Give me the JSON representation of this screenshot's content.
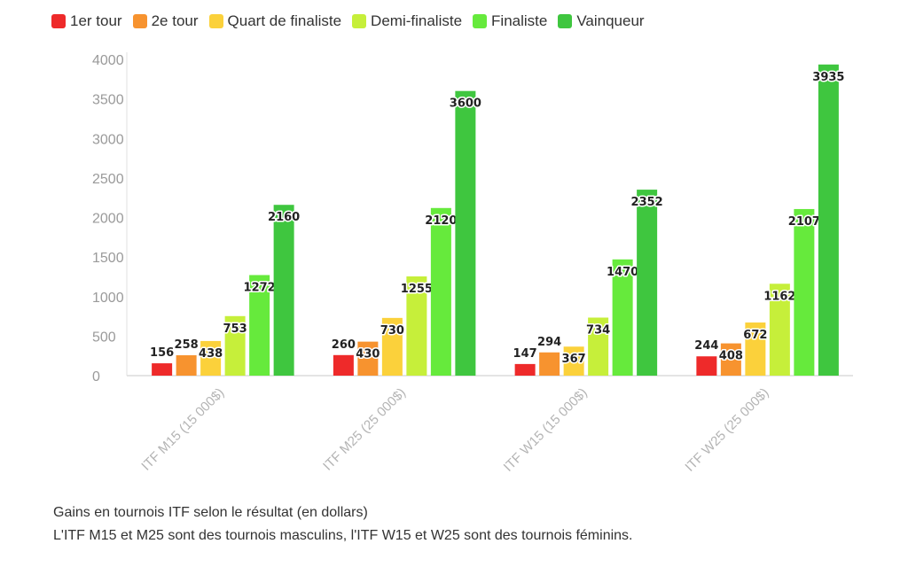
{
  "chart_data": {
    "type": "bar",
    "categories": [
      "ITF M15 (15 000$)",
      "ITF M25 (25 000$)",
      "ITF W15 (15 000$)",
      "ITF W25 (25 000$)"
    ],
    "series": [
      {
        "name": "1er tour",
        "color": "#ee2a2a",
        "values": [
          156,
          260,
          147,
          244
        ]
      },
      {
        "name": "2e tour",
        "color": "#f7932f",
        "values": [
          258,
          430,
          294,
          408
        ]
      },
      {
        "name": "Quart de finaliste",
        "color": "#fbd13b",
        "values": [
          438,
          730,
          367,
          672
        ]
      },
      {
        "name": "Demi-finaliste",
        "color": "#c6ef3a",
        "values": [
          753,
          1255,
          734,
          1162
        ]
      },
      {
        "name": "Finaliste",
        "color": "#66ea3c",
        "values": [
          1272,
          2120,
          1470,
          2107
        ]
      },
      {
        "name": "Vainqueur",
        "color": "#3fc63f",
        "values": [
          2160,
          3600,
          2352,
          3935
        ]
      }
    ],
    "y_ticks": [
      0,
      500,
      1000,
      1500,
      2000,
      2500,
      3000,
      3500,
      4000
    ],
    "ylim": [
      0,
      4000
    ],
    "grid": false,
    "legend_position": "top-left",
    "data_labels": true
  },
  "captions": {
    "line1": "Gains en tournois ITF selon le résultat (en dollars)",
    "line2": "L'ITF M15 et M25 sont des tournois masculins, l'ITF W15 et W25 sont des tournois féminins."
  }
}
